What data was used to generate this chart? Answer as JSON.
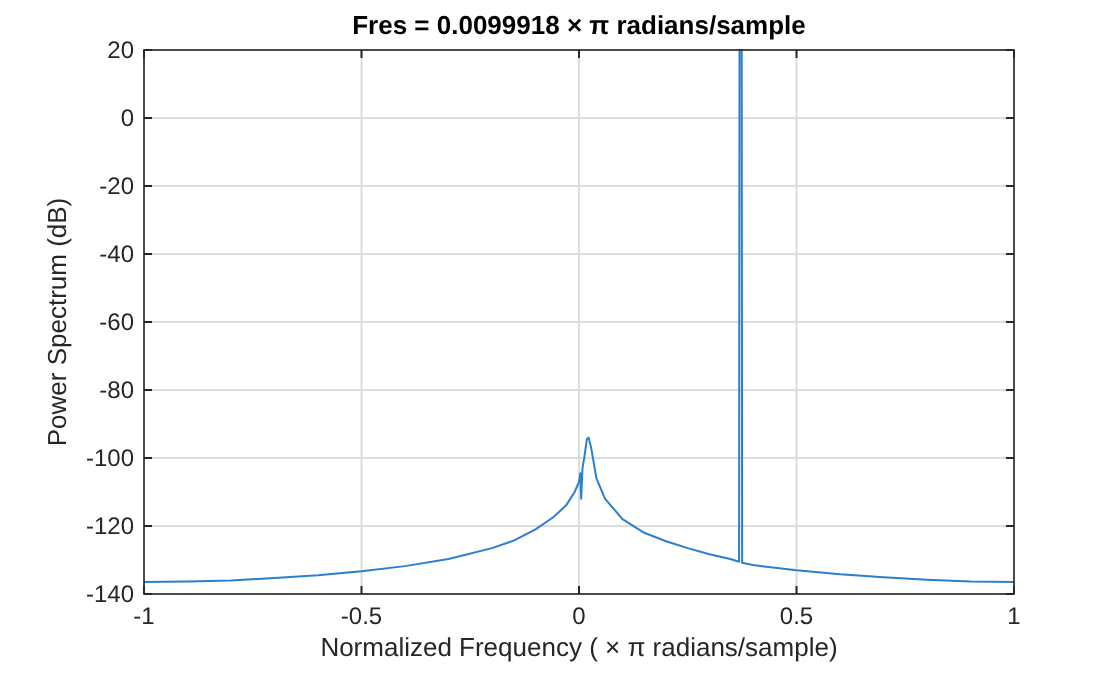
{
  "chart_data": {
    "type": "line",
    "title": "Fres  =  0.0099918   × π  radians/sample",
    "xlabel": "Normalized  Frequency  ( × π  radians/sample)",
    "ylabel": "Power Spectrum (dB)",
    "xlim": [
      -1,
      1
    ],
    "xticks": [
      -1,
      -0.5,
      0,
      0.5,
      1
    ],
    "ylim": [
      -140,
      20
    ],
    "yticks": [
      -140,
      -120,
      -100,
      -80,
      -60,
      -40,
      -20,
      0,
      20
    ],
    "grid": true,
    "x": [
      -1,
      -0.9,
      -0.8,
      -0.7,
      -0.6,
      -0.5,
      -0.4,
      -0.3,
      -0.2,
      -0.15,
      -0.1,
      -0.06,
      -0.03,
      -0.01,
      0,
      0.003,
      0.005,
      0.008,
      0.012,
      0.018,
      0.022,
      0.028,
      0.04,
      0.06,
      0.1,
      0.15,
      0.2,
      0.25,
      0.3,
      0.35,
      0.368,
      0.369,
      0.374,
      0.375,
      0.4,
      0.5,
      0.6,
      0.7,
      0.8,
      0.9,
      1
    ],
    "series": [
      {
        "color": "#2a7fd0",
        "values": [
          -136.5,
          -136.3,
          -136,
          -135.3,
          -134.5,
          -133.3,
          -131.8,
          -129.7,
          -126.5,
          -124.3,
          -121,
          -117.5,
          -114,
          -110,
          -107,
          -104.5,
          -112,
          -103,
          -100,
          -94.5,
          -94,
          -97,
          -106,
          -112,
          -118,
          -122,
          -124.5,
          -126.5,
          -128.3,
          -129.8,
          -130.5,
          20,
          20,
          -130.8,
          -131.5,
          -133,
          -134.2,
          -135.1,
          -135.8,
          -136.3,
          -136.5
        ]
      }
    ]
  }
}
